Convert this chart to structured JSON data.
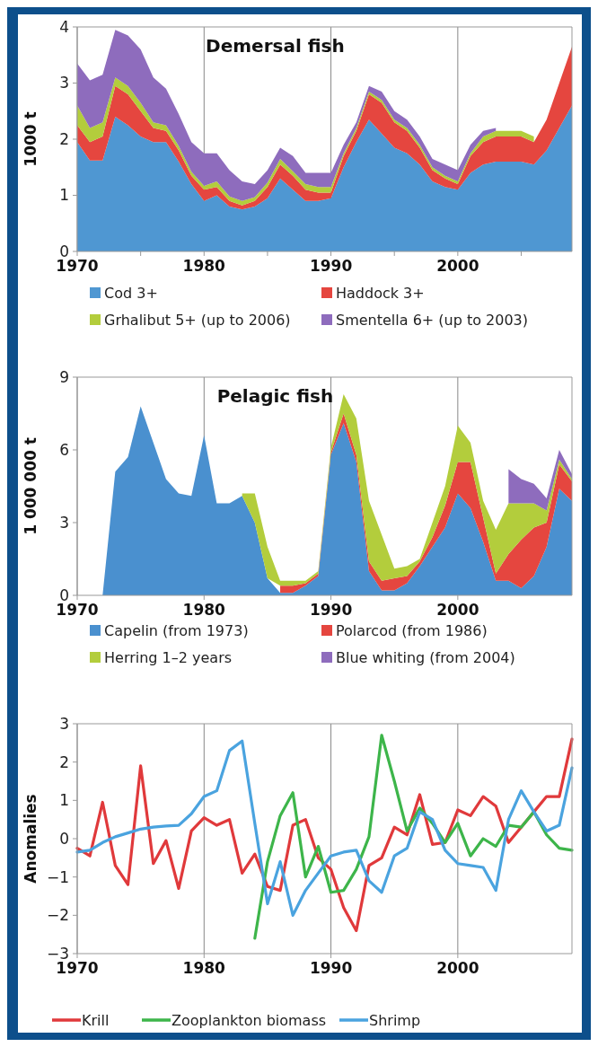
{
  "chart_data": [
    {
      "type": "area",
      "stacked": true,
      "title": "Demersal fish",
      "ylabel": "1000 t",
      "grid": "x",
      "legend": "bottom",
      "x": [
        1970,
        1971,
        1972,
        1973,
        1974,
        1975,
        1976,
        1977,
        1978,
        1979,
        1980,
        1981,
        1982,
        1983,
        1984,
        1985,
        1986,
        1987,
        1988,
        1989,
        1990,
        1991,
        1992,
        1993,
        1994,
        1995,
        1996,
        1997,
        1998,
        1999,
        2000,
        2001,
        2002,
        2003,
        2004,
        2005,
        2006,
        2007,
        2008,
        2009
      ],
      "xlim": [
        1970,
        2009
      ],
      "xticks": [
        1970,
        {
          "value": 1975,
          "label": null
        },
        1980,
        {
          "value": 1985,
          "label": null
        },
        1990,
        {
          "value": 1995,
          "label": null
        },
        2000,
        {
          "value": 2005,
          "label": null
        }
      ],
      "ylim": [
        0,
        4
      ],
      "yticks": [
        0,
        1,
        2,
        3,
        4
      ],
      "series": [
        {
          "name": "Cod 3+",
          "color": "#4f97d2",
          "values": [
            1.95,
            1.62,
            1.62,
            2.4,
            2.25,
            2.05,
            1.95,
            1.95,
            1.6,
            1.2,
            0.9,
            1.0,
            0.8,
            0.75,
            0.8,
            0.95,
            1.3,
            1.1,
            0.9,
            0.9,
            0.95,
            1.5,
            1.95,
            2.35,
            2.1,
            1.85,
            1.75,
            1.55,
            1.25,
            1.15,
            1.1,
            1.4,
            1.55,
            1.6,
            1.6,
            1.6,
            1.55,
            1.8,
            2.2,
            2.6
          ]
        },
        {
          "name": "Haddock 3+",
          "color": "#e5463f",
          "values": [
            0.3,
            0.33,
            0.43,
            0.55,
            0.55,
            0.45,
            0.25,
            0.2,
            0.2,
            0.15,
            0.2,
            0.15,
            0.1,
            0.07,
            0.1,
            0.2,
            0.25,
            0.25,
            0.2,
            0.15,
            0.1,
            0.2,
            0.2,
            0.45,
            0.55,
            0.45,
            0.4,
            0.3,
            0.2,
            0.15,
            0.1,
            0.3,
            0.4,
            0.45,
            0.45,
            0.45,
            0.4,
            0.55,
            0.8,
            1.05
          ]
        },
        {
          "name": "Grhalibut 5+ (up to 2006)",
          "color": "#b3cd3c",
          "values": [
            0.35,
            0.25,
            0.25,
            0.15,
            0.15,
            0.15,
            0.1,
            0.1,
            0.08,
            0.07,
            0.07,
            0.1,
            0.08,
            0.08,
            0.07,
            0.08,
            0.1,
            0.08,
            0.1,
            0.1,
            0.1,
            0.05,
            0.05,
            0.05,
            0.05,
            0.05,
            0.05,
            0.05,
            0.05,
            0.05,
            0.05,
            0.05,
            0.1,
            0.1,
            0.1,
            0.1,
            0.1,
            null,
            null,
            null
          ]
        },
        {
          "name": "Smentella 6+ (up to 2003)",
          "color": "#8e6cbd",
          "values": [
            0.75,
            0.85,
            0.85,
            0.85,
            0.9,
            0.95,
            0.8,
            0.65,
            0.57,
            0.53,
            0.58,
            0.5,
            0.47,
            0.35,
            0.23,
            0.22,
            0.2,
            0.27,
            0.2,
            0.25,
            0.25,
            0.15,
            0.1,
            0.1,
            0.15,
            0.15,
            0.15,
            0.15,
            0.15,
            0.2,
            0.2,
            0.15,
            0.1,
            0.05,
            null,
            null,
            null,
            null,
            null,
            null
          ]
        }
      ]
    },
    {
      "type": "area",
      "stacked": true,
      "title": "Pelagic fish",
      "ylabel": "1 000 000 t",
      "grid": "x",
      "legend": "bottom",
      "x": [
        1972,
        1973,
        1974,
        1975,
        1976,
        1977,
        1978,
        1979,
        1980,
        1981,
        1982,
        1983,
        1984,
        1985,
        1986,
        1987,
        1988,
        1989,
        1990,
        1991,
        1992,
        1993,
        1994,
        1995,
        1996,
        1997,
        1998,
        1999,
        2000,
        2001,
        2002,
        2003,
        2004,
        2005,
        2006,
        2007,
        2008,
        2009
      ],
      "xlim": [
        1970,
        2009
      ],
      "xticks": [
        1970,
        1980,
        1990,
        2000
      ],
      "ylim": [
        0,
        9
      ],
      "yticks": [
        0,
        3,
        6,
        9
      ],
      "series": [
        {
          "name": "Capelin (from 1973)",
          "color": "#4a90cf",
          "values": [
            0,
            5.1,
            5.7,
            7.8,
            6.3,
            4.8,
            4.2,
            4.1,
            6.6,
            3.8,
            3.8,
            4.1,
            3.0,
            0.7,
            0.1,
            0.1,
            0.4,
            0.8,
            5.8,
            7.1,
            5.5,
            1.0,
            0.2,
            0.2,
            0.5,
            1.2,
            2.0,
            2.8,
            4.2,
            3.6,
            2.2,
            0.6,
            0.6,
            0.3,
            0.8,
            2.0,
            4.4,
            3.9
          ]
        },
        {
          "name": "Polarcod (from 1986)",
          "color": "#e5463f",
          "values": [
            null,
            null,
            null,
            null,
            null,
            null,
            null,
            null,
            null,
            null,
            null,
            null,
            null,
            null,
            0.3,
            0.3,
            0.1,
            0.1,
            0.1,
            0.4,
            0.3,
            0.4,
            0.4,
            0.5,
            0.3,
            0.2,
            0.4,
            0.9,
            1.3,
            1.9,
            1.0,
            0.3,
            1.1,
            2.0,
            2.0,
            1.0,
            1.0,
            0.8
          ]
        },
        {
          "name": "Herring 1–2 years",
          "color": "#b3cd3c",
          "values": [
            null,
            null,
            null,
            null,
            null,
            null,
            null,
            null,
            null,
            null,
            null,
            0.1,
            1.2,
            1.3,
            0.2,
            0.2,
            0.1,
            0.1,
            0.2,
            0.8,
            1.5,
            2.5,
            1.9,
            0.4,
            0.4,
            0.1,
            0.6,
            0.8,
            1.5,
            0.8,
            0.7,
            1.8,
            2.1,
            1.5,
            1.0,
            0.5,
            0.2,
            0.1
          ]
        },
        {
          "name": "Blue whiting (from 2004)",
          "color": "#8e6cbd",
          "values": [
            null,
            null,
            null,
            null,
            null,
            null,
            null,
            null,
            null,
            null,
            null,
            null,
            null,
            null,
            null,
            null,
            null,
            null,
            null,
            null,
            null,
            null,
            null,
            null,
            null,
            null,
            null,
            null,
            null,
            null,
            null,
            null,
            1.4,
            1.0,
            0.8,
            0.5,
            0.4,
            0.2
          ]
        }
      ]
    },
    {
      "type": "line",
      "ylabel": "Anomalies",
      "grid": "x",
      "legend": "bottom",
      "line_style": "solid",
      "x": [
        1970,
        1971,
        1972,
        1973,
        1974,
        1975,
        1976,
        1977,
        1978,
        1979,
        1980,
        1981,
        1982,
        1983,
        1984,
        1985,
        1986,
        1987,
        1988,
        1989,
        1990,
        1991,
        1992,
        1993,
        1994,
        1995,
        1996,
        1997,
        1998,
        1999,
        2000,
        2001,
        2002,
        2003,
        2004,
        2005,
        2006,
        2007,
        2008,
        2009
      ],
      "xlim": [
        1970,
        2009
      ],
      "xticks": [
        1970,
        1980,
        1990,
        2000
      ],
      "ylim": [
        -3,
        3
      ],
      "yticks": [
        {
          "value": -3,
          "label": "−3"
        },
        {
          "value": -2,
          "label": "−2"
        },
        {
          "value": -1,
          "label": "−1"
        },
        0,
        1,
        2,
        3
      ],
      "series": [
        {
          "name": "Krill",
          "color": "#e0393b",
          "values": [
            -0.25,
            -0.45,
            0.95,
            -0.7,
            -1.2,
            1.9,
            -0.65,
            -0.05,
            -1.3,
            0.2,
            0.55,
            0.35,
            0.5,
            -0.9,
            -0.4,
            -1.25,
            -1.35,
            0.35,
            0.5,
            -0.5,
            -0.8,
            -1.8,
            -2.4,
            -0.7,
            -0.5,
            0.3,
            0.1,
            1.15,
            -0.15,
            -0.1,
            0.75,
            0.6,
            1.1,
            0.85,
            -0.1,
            0.3,
            0.7,
            1.1,
            1.1,
            2.6
          ]
        },
        {
          "name": "Zooplankton biomass",
          "color": "#3db54a",
          "values": [
            null,
            null,
            null,
            null,
            null,
            null,
            null,
            null,
            null,
            null,
            null,
            null,
            null,
            null,
            -2.6,
            -0.6,
            0.6,
            1.2,
            -1.0,
            -0.2,
            -1.4,
            -1.35,
            -0.8,
            0.05,
            2.7,
            1.5,
            0.2,
            0.8,
            0.4,
            -0.1,
            0.4,
            -0.45,
            0.0,
            -0.2,
            0.35,
            0.3,
            0.7,
            0.1,
            -0.25,
            -0.3
          ]
        },
        {
          "name": "Shrimp",
          "color": "#4aa3df",
          "values": [
            -0.35,
            -0.3,
            -0.1,
            0.05,
            0.15,
            0.25,
            0.3,
            0.33,
            0.35,
            0.65,
            1.1,
            1.25,
            2.3,
            2.55,
            0.4,
            -1.7,
            -0.6,
            -2.0,
            -1.35,
            -0.9,
            -0.45,
            -0.35,
            -0.3,
            -1.1,
            -1.4,
            -0.45,
            -0.25,
            0.7,
            0.5,
            -0.3,
            -0.65,
            -0.7,
            -0.75,
            -1.35,
            0.5,
            1.25,
            0.7,
            0.2,
            0.35,
            1.85
          ]
        }
      ]
    }
  ]
}
